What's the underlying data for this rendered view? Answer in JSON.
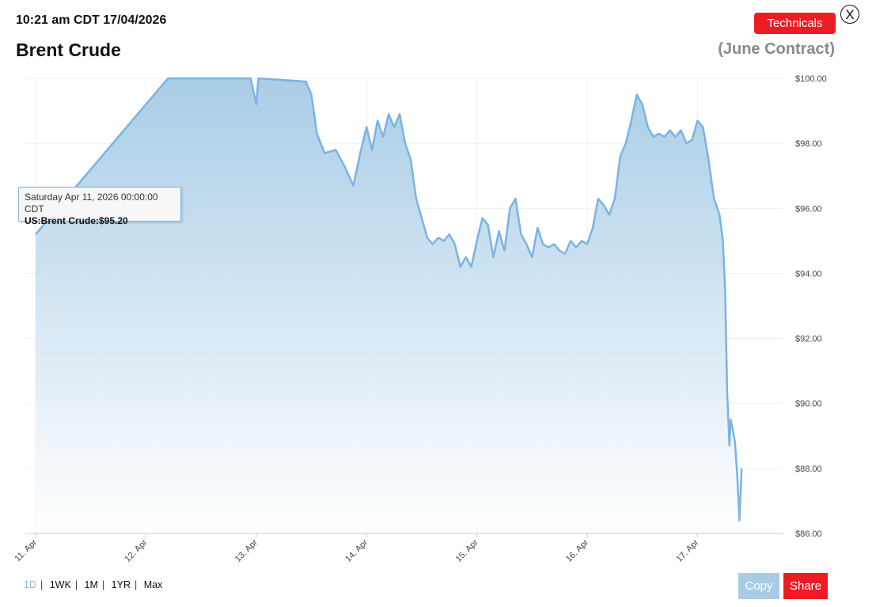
{
  "header": {
    "timestamp": "10:21 am CDT 17/04/2026",
    "title": "Brent Crude",
    "contract": "(June Contract)",
    "technicals_label": "Technicals",
    "close_label": "X"
  },
  "tooltip": {
    "date": "Saturday Apr 11, 2026 00:00:00 CDT",
    "value": "US:Brent Crude:$95.20"
  },
  "ranges": [
    {
      "label": "1D",
      "active": true
    },
    {
      "label": "1WK",
      "active": false
    },
    {
      "label": "1M",
      "active": false
    },
    {
      "label": "1YR",
      "active": false
    },
    {
      "label": "Max",
      "active": false
    }
  ],
  "footer": {
    "copy_label": "Copy",
    "share_label": "Share"
  },
  "colors": {
    "line": "#7ab3e6",
    "area_top": "#a9cde6",
    "area_bottom": "#ffffff",
    "accent_red": "#ed1c24",
    "copy_button": "#a9cce6",
    "grid": "#eeeeee",
    "axis_text": "#444444"
  },
  "chart_data": {
    "type": "area",
    "x_unit": "days since 11 Apr 2026",
    "xlim": [
      0,
      6.74
    ],
    "ylim": [
      86,
      100
    ],
    "yticks": [
      86,
      88,
      90,
      92,
      94,
      96,
      98,
      100
    ],
    "ytick_labels": [
      "$86.00",
      "$88.00",
      "$90.00",
      "$92.00",
      "$94.00",
      "$96.00",
      "$98.00",
      "$100.00"
    ],
    "xticks": [
      0,
      1,
      2,
      3,
      4,
      5,
      6
    ],
    "xtick_labels": [
      "11. Apr",
      "12. Apr",
      "13. Apr",
      "14. Apr",
      "15. Apr",
      "16. Apr",
      "17. Apr"
    ],
    "grid": true,
    "series": [
      {
        "name": "US:Brent Crude",
        "points": [
          [
            0.0,
            95.2
          ],
          [
            1.2,
            100.0
          ],
          [
            1.95,
            100.0
          ],
          [
            2.0,
            99.2
          ],
          [
            2.02,
            100.0
          ],
          [
            2.45,
            99.9
          ],
          [
            2.5,
            99.5
          ],
          [
            2.55,
            98.3
          ],
          [
            2.62,
            97.7
          ],
          [
            2.72,
            97.8
          ],
          [
            2.8,
            97.3
          ],
          [
            2.88,
            96.7
          ],
          [
            2.95,
            97.8
          ],
          [
            3.0,
            98.5
          ],
          [
            3.05,
            97.8
          ],
          [
            3.1,
            98.7
          ],
          [
            3.15,
            98.2
          ],
          [
            3.2,
            98.9
          ],
          [
            3.25,
            98.5
          ],
          [
            3.3,
            98.9
          ],
          [
            3.35,
            98.0
          ],
          [
            3.4,
            97.5
          ],
          [
            3.45,
            96.3
          ],
          [
            3.5,
            95.7
          ],
          [
            3.55,
            95.1
          ],
          [
            3.6,
            94.9
          ],
          [
            3.65,
            95.1
          ],
          [
            3.7,
            95.0
          ],
          [
            3.75,
            95.2
          ],
          [
            3.8,
            94.9
          ],
          [
            3.85,
            94.2
          ],
          [
            3.9,
            94.5
          ],
          [
            3.95,
            94.2
          ],
          [
            4.0,
            95.0
          ],
          [
            4.05,
            95.7
          ],
          [
            4.1,
            95.5
          ],
          [
            4.15,
            94.5
          ],
          [
            4.2,
            95.3
          ],
          [
            4.25,
            94.7
          ],
          [
            4.3,
            96.0
          ],
          [
            4.35,
            96.3
          ],
          [
            4.4,
            95.2
          ],
          [
            4.45,
            94.9
          ],
          [
            4.5,
            94.5
          ],
          [
            4.55,
            95.4
          ],
          [
            4.6,
            94.9
          ],
          [
            4.65,
            94.8
          ],
          [
            4.7,
            94.9
          ],
          [
            4.75,
            94.7
          ],
          [
            4.8,
            94.6
          ],
          [
            4.85,
            95.0
          ],
          [
            4.9,
            94.8
          ],
          [
            4.95,
            95.0
          ],
          [
            5.0,
            94.9
          ],
          [
            5.05,
            95.4
          ],
          [
            5.1,
            96.3
          ],
          [
            5.15,
            96.1
          ],
          [
            5.2,
            95.8
          ],
          [
            5.25,
            96.3
          ],
          [
            5.3,
            97.6
          ],
          [
            5.35,
            98.0
          ],
          [
            5.4,
            98.7
          ],
          [
            5.45,
            99.5
          ],
          [
            5.5,
            99.2
          ],
          [
            5.55,
            98.5
          ],
          [
            5.6,
            98.2
          ],
          [
            5.65,
            98.3
          ],
          [
            5.7,
            98.2
          ],
          [
            5.75,
            98.4
          ],
          [
            5.8,
            98.2
          ],
          [
            5.85,
            98.4
          ],
          [
            5.9,
            98.0
          ],
          [
            5.95,
            98.1
          ],
          [
            6.0,
            98.7
          ],
          [
            6.05,
            98.5
          ],
          [
            6.1,
            97.5
          ],
          [
            6.15,
            96.3
          ],
          [
            6.2,
            95.8
          ],
          [
            6.23,
            95.0
          ],
          [
            6.25,
            93.5
          ],
          [
            6.27,
            90.3
          ],
          [
            6.29,
            88.7
          ],
          [
            6.3,
            89.5
          ],
          [
            6.32,
            89.2
          ],
          [
            6.34,
            88.8
          ],
          [
            6.36,
            87.8
          ],
          [
            6.38,
            86.4
          ],
          [
            6.4,
            88.0
          ]
        ]
      }
    ]
  }
}
